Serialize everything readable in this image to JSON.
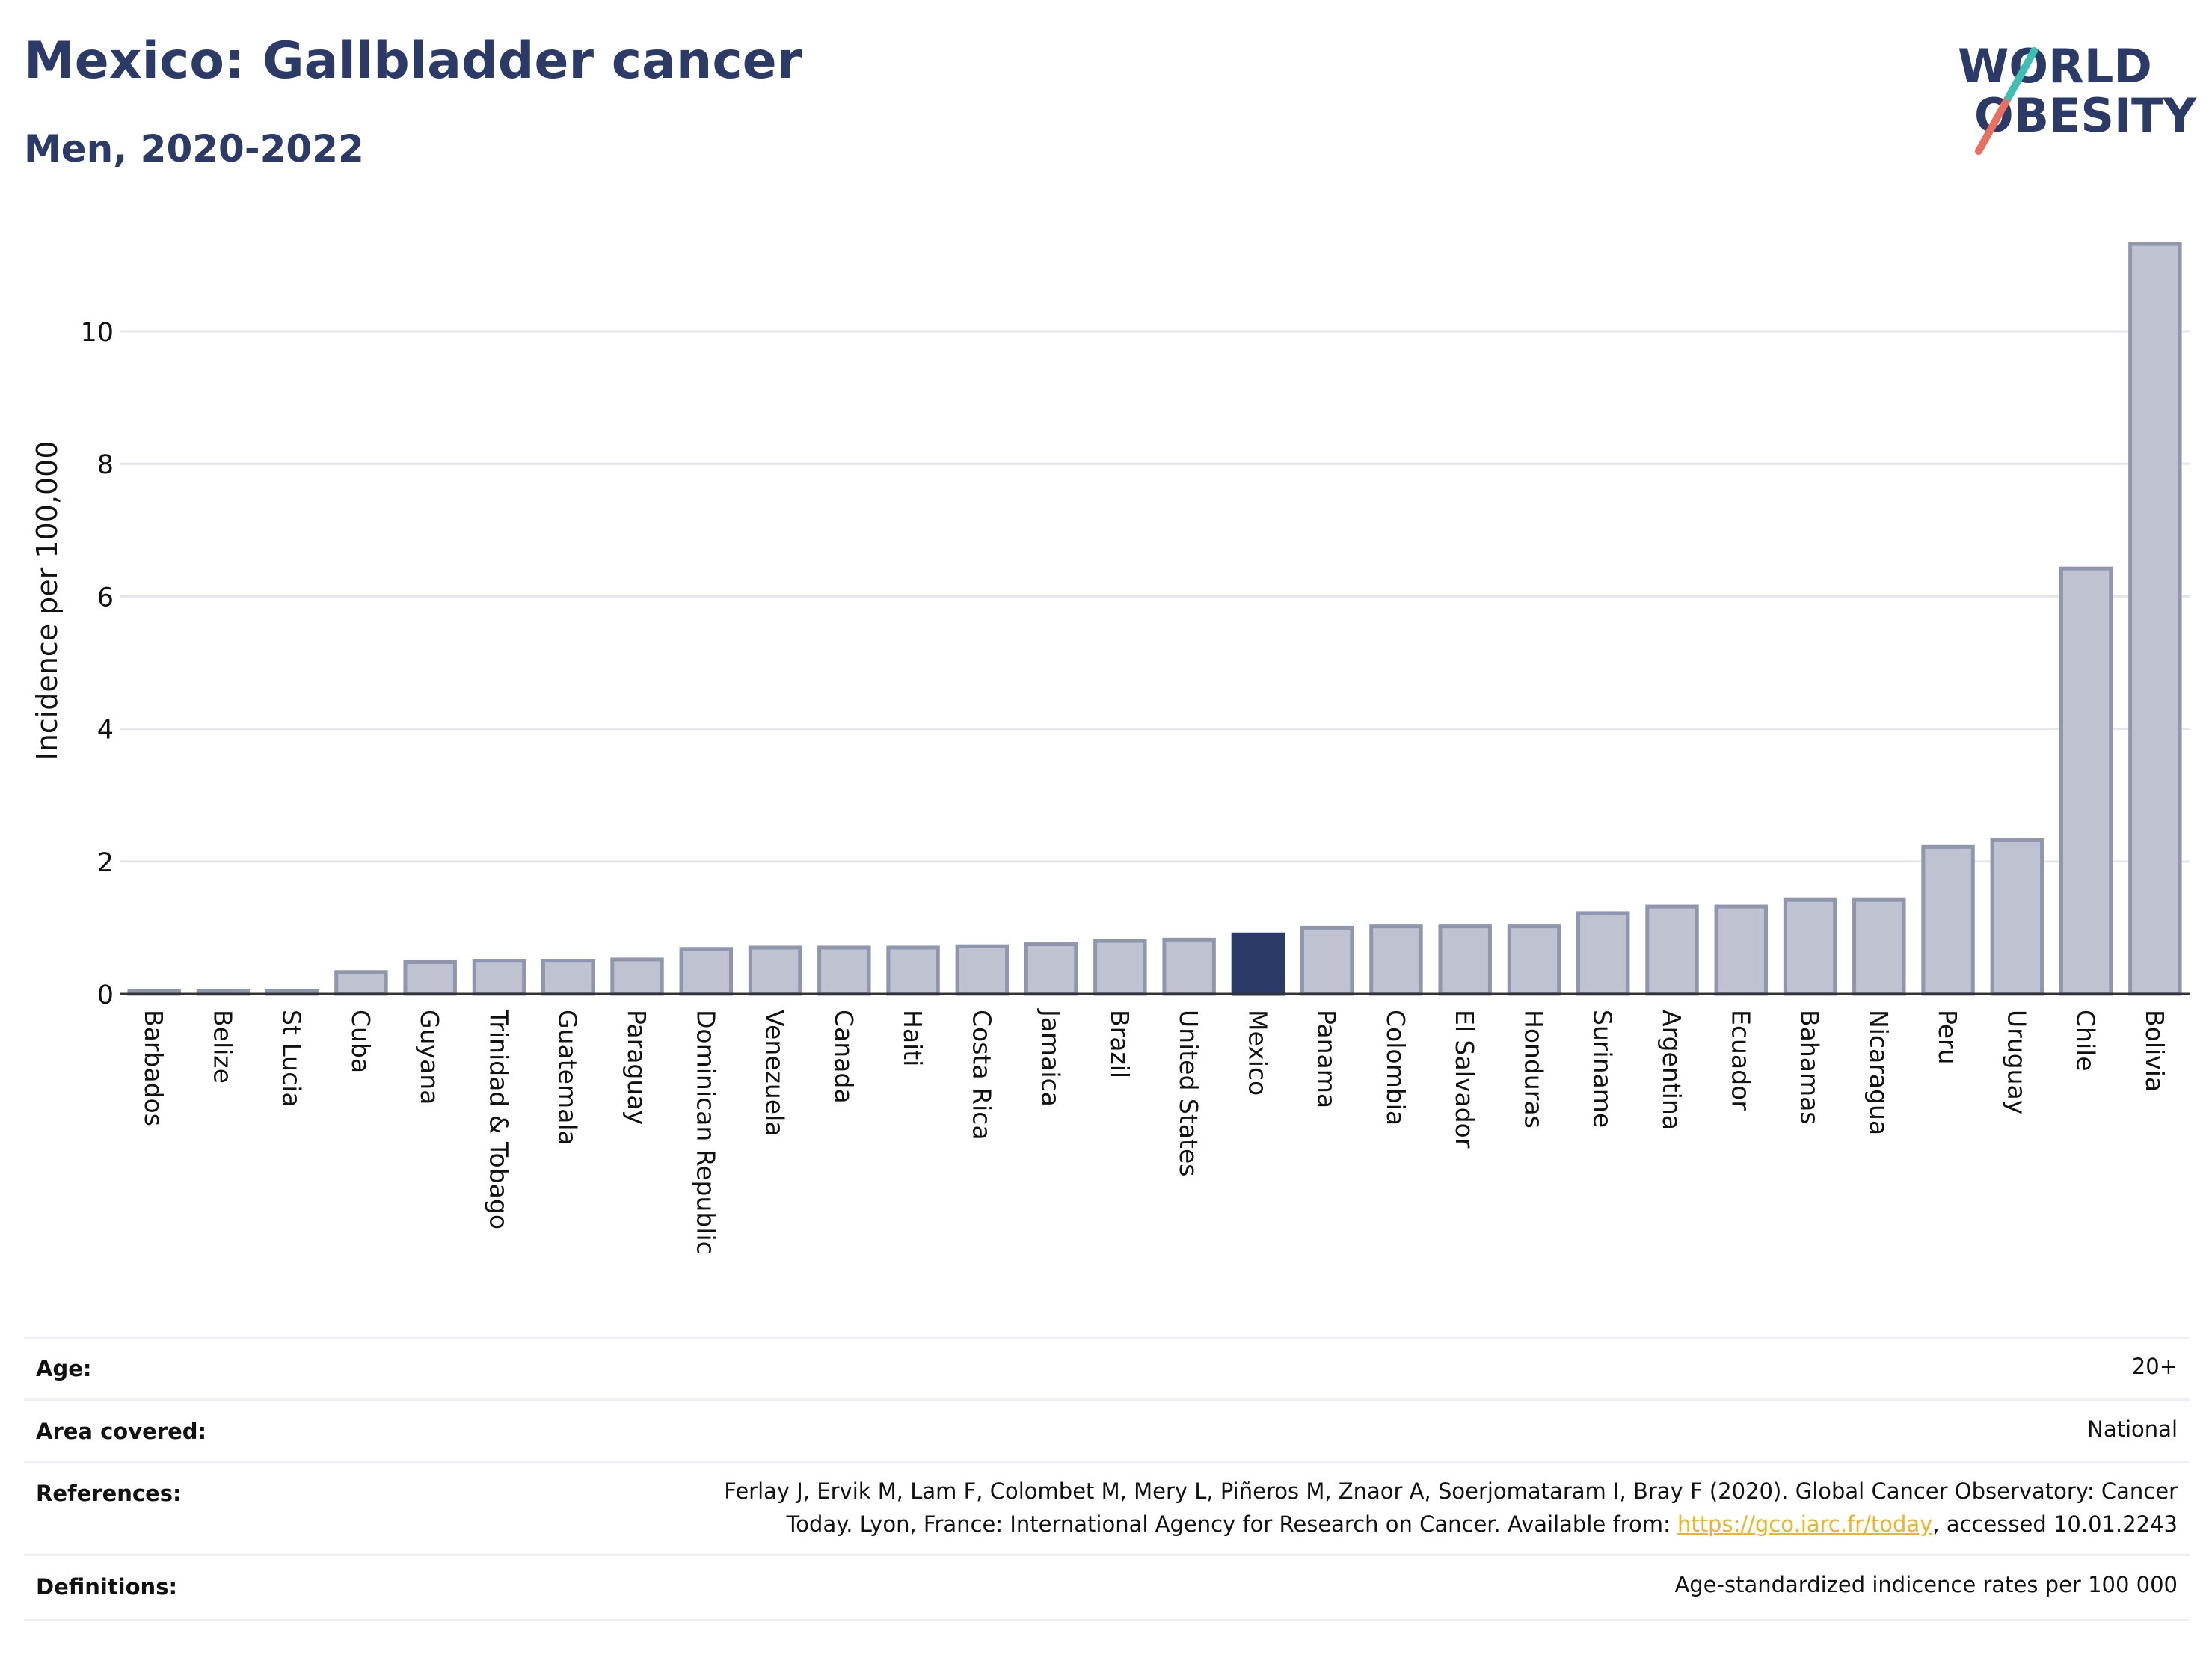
{
  "header": {
    "title": "Mexico: Gallbladder cancer",
    "subtitle": "Men, 2020-2022"
  },
  "logo": {
    "line1": "WORLD",
    "line2": "OBESITY"
  },
  "colors": {
    "bar": "#bfc3d1",
    "bar_border": "#8f96ad",
    "highlight": "#2b3a67",
    "title": "#2b3a67",
    "grid": "#e6e6ea",
    "link": "#f0b323"
  },
  "chart_data": {
    "type": "bar",
    "ylabel": "Incidence per 100,000",
    "ylim": [
      0,
      11.5
    ],
    "yticks": [
      0,
      2,
      4,
      6,
      8,
      10
    ],
    "grid": true,
    "highlight": "Mexico",
    "categories": [
      "Barbados",
      "Belize",
      "St Lucia",
      "Cuba",
      "Guyana",
      "Trinidad & Tobago",
      "Guatemala",
      "Paraguay",
      "Dominican Republic",
      "Venezuela",
      "Canada",
      "Haiti",
      "Costa Rica",
      "Jamaica",
      "Brazil",
      "United States",
      "Mexico",
      "Panama",
      "Colombia",
      "El Salvador",
      "Honduras",
      "Suriname",
      "Argentina",
      "Ecuador",
      "Bahamas",
      "Nicaragua",
      "Peru",
      "Uruguay",
      "Chile",
      "Bolivia"
    ],
    "values": [
      0.05,
      0.05,
      0.05,
      0.33,
      0.48,
      0.5,
      0.5,
      0.52,
      0.68,
      0.7,
      0.7,
      0.7,
      0.72,
      0.75,
      0.8,
      0.82,
      0.9,
      1.0,
      1.02,
      1.02,
      1.02,
      1.22,
      1.32,
      1.32,
      1.42,
      1.42,
      2.22,
      2.32,
      6.42,
      11.32
    ]
  },
  "info": {
    "age_label": "Age:",
    "age_value": "20+",
    "area_label": "Area covered:",
    "area_value": "National",
    "references_label": "References:",
    "references_line1": "Ferlay J, Ervik M, Lam F, Colombet M, Mery L, Piñeros M, Znaor A, Soerjomataram I, Bray F (2020). Global Cancer Observatory: Cancer",
    "references_line2_pre": "Today. Lyon, France: International Agency for Research on Cancer. Available from: ",
    "references_link": "https://gco.iarc.fr/today",
    "references_line2_post": ", accessed 10.01.2243",
    "definitions_label": "Definitions:",
    "definitions_value": "Age-standardized indicence rates per 100 000"
  }
}
